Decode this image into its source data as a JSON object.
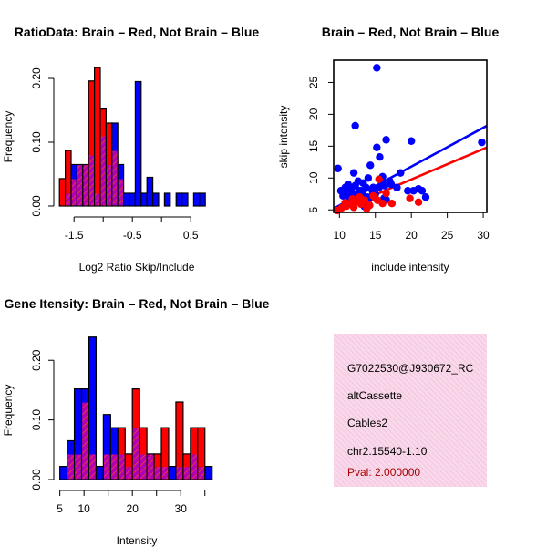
{
  "colors": {
    "red": "#ff0000",
    "blue": "#0000ff",
    "purple": "#b000b0",
    "info_bg": "#f8d8ea",
    "info_hatch": "#f2b8d8",
    "pval": "#aa0000"
  },
  "chart_data": [
    {
      "id": "ratio",
      "type": "bar",
      "title": "RatioData: Brain – Red, Not Brain – Blue",
      "xlabel": "Log2 Ratio Skip/Include",
      "ylabel": "Frequency",
      "xlim": [
        -1.8,
        0.95
      ],
      "ylim": [
        0,
        0.23
      ],
      "xticks": [
        -1.5,
        -1.0,
        -0.5,
        0.0,
        0.5
      ],
      "xtick_labels": [
        "-1.5",
        "",
        "-0.5",
        "",
        "0.5"
      ],
      "yticks": [
        0.0,
        0.1,
        0.2
      ],
      "ytick_labels": [
        "0.00",
        "0.10",
        "0.20"
      ],
      "bin_edges": [
        -1.75,
        -1.65,
        -1.55,
        -1.45,
        -1.35,
        -1.25,
        -1.15,
        -1.05,
        -0.95,
        -0.85,
        -0.75,
        -0.65,
        -0.55,
        -0.45,
        -0.35,
        -0.25,
        -0.15,
        -0.05,
        0.05,
        0.15,
        0.25,
        0.35,
        0.45,
        0.55,
        0.65,
        0.75
      ],
      "series": [
        {
          "name": "Not Brain",
          "color": "blue",
          "values": [
            0,
            0.02,
            0.065,
            0.065,
            0.065,
            0.08,
            0.02,
            0.11,
            0.065,
            0.13,
            0.065,
            0.02,
            0.02,
            0.195,
            0.02,
            0.045,
            0.02,
            0,
            0.02,
            0,
            0.02,
            0.02,
            0,
            0.02,
            0.02
          ]
        },
        {
          "name": "Brain",
          "color": "red",
          "values": [
            0.043,
            0.087,
            0.043,
            0.065,
            0.065,
            0.196,
            0.217,
            0.152,
            0.13,
            0.087,
            0.043,
            0,
            0,
            0,
            0,
            0,
            0,
            0,
            0,
            0,
            0,
            0,
            0,
            0,
            0
          ]
        }
      ]
    },
    {
      "id": "scatter",
      "type": "scatter",
      "title": "Brain – Red, Not Brain – Blue",
      "xlabel": "include intensity",
      "ylabel": "skip intensity",
      "xlim": [
        9.2,
        30.5
      ],
      "ylim": [
        4.6,
        28.5
      ],
      "xticks": [
        10,
        15,
        20,
        25,
        30
      ],
      "yticks": [
        5,
        10,
        15,
        20,
        25
      ],
      "series": [
        {
          "name": "Not Brain",
          "color": "blue",
          "x": [
            15.2,
            12.2,
            9.8,
            10.2,
            10.8,
            11.2,
            11.6,
            12.2,
            12.6,
            13.0,
            13.3,
            13.7,
            14.0,
            14.3,
            14.7,
            15.2,
            15.6,
            16.0,
            16.5,
            17.0,
            11.3,
            11.8,
            12.5,
            13.2,
            13.8,
            14.6,
            15.5,
            16.3,
            17.2,
            18.0,
            18.5,
            19.5,
            20.0,
            20.3,
            21.0,
            21.5,
            22.0,
            29.8,
            14.0,
            14.3,
            15.0,
            16.2,
            12.8,
            13.5,
            16.5,
            12.0,
            11.0,
            12.7,
            13.6,
            10.5
          ],
          "y": [
            27.3,
            18.2,
            11.5,
            8.0,
            8.5,
            9.0,
            8.2,
            8.8,
            9.5,
            8.0,
            9.2,
            8.5,
            10.0,
            12.0,
            8.5,
            14.8,
            13.3,
            10.2,
            16.0,
            9.5,
            7.0,
            7.5,
            7.3,
            7.8,
            7.0,
            8.0,
            8.5,
            8.8,
            9.0,
            8.5,
            10.8,
            8.0,
            15.8,
            8.0,
            8.3,
            8.0,
            7.0,
            15.6,
            6.5,
            7.0,
            7.5,
            6.8,
            6.2,
            5.5,
            6.6,
            10.8,
            7.5,
            8.0,
            6.0,
            7.2
          ]
        },
        {
          "name": "Brain",
          "color": "red",
          "x": [
            9.7,
            10.3,
            11.0,
            11.5,
            12.0,
            12.5,
            13.0,
            13.5,
            14.2,
            14.7,
            15.0,
            15.5,
            16.0,
            16.5,
            10.8,
            12.8,
            15.3,
            17.3,
            19.8,
            21.0,
            11.8,
            13.8
          ],
          "y": [
            4.9,
            5.3,
            5.6,
            6.0,
            5.4,
            6.3,
            5.9,
            6.5,
            5.7,
            7.2,
            6.8,
            9.8,
            6.0,
            7.6,
            6.1,
            7.0,
            6.5,
            6.0,
            6.8,
            6.2,
            6.7,
            5.2
          ]
        }
      ],
      "fit_lines": [
        {
          "name": "Brain",
          "color": "red",
          "x": [
            9.2,
            30.5
          ],
          "y": [
            4.6,
            14.8
          ]
        },
        {
          "name": "Not Brain",
          "color": "blue",
          "x": [
            9.2,
            30.5
          ],
          "y": [
            5.2,
            18.2
          ]
        }
      ]
    },
    {
      "id": "intensity",
      "type": "bar",
      "title": "Gene Itensity: Brain – Red, Not Brain – Blue",
      "xlabel": "Intensity",
      "ylabel": "Frequency",
      "xlim": [
        4.5,
        37.5
      ],
      "ylim": [
        0,
        0.26
      ],
      "xticks": [
        5,
        10,
        20,
        30
      ],
      "xtick_labels": [
        "5",
        "10",
        "20",
        "30"
      ],
      "minor_xticks": [
        15,
        25,
        35
      ],
      "yticks": [
        0.0,
        0.1,
        0.2
      ],
      "ytick_labels": [
        "0.00",
        "0.10",
        "0.20"
      ],
      "bin_edges": [
        5,
        6.5,
        8,
        9.5,
        11,
        12.5,
        14,
        15.5,
        17,
        18.5,
        20,
        21.5,
        23,
        24.5,
        26,
        27.5,
        29,
        30.5,
        32,
        33.5,
        35,
        36.5
      ],
      "series": [
        {
          "name": "Not Brain",
          "color": "blue",
          "values": [
            0.022,
            0.065,
            0.152,
            0.152,
            0.239,
            0.022,
            0.109,
            0.087,
            0.043,
            0.022,
            0.087,
            0.043,
            0.043,
            0.022,
            0.022,
            0.022,
            0.022,
            0.022,
            0.043,
            0.022,
            0.022
          ]
        },
        {
          "name": "Brain",
          "color": "red",
          "values": [
            0,
            0.043,
            0.043,
            0.13,
            0.043,
            0,
            0.043,
            0.043,
            0.087,
            0.043,
            0.152,
            0.087,
            0.043,
            0.043,
            0.087,
            0,
            0.13,
            0.043,
            0.087,
            0.087,
            0
          ]
        }
      ]
    }
  ],
  "info": {
    "id": "G7022530@J930672_RC",
    "type": "altCassette",
    "gene": "Cables2",
    "location": "chr2.15540-1.10",
    "pval": "Pval: 2.000000"
  }
}
